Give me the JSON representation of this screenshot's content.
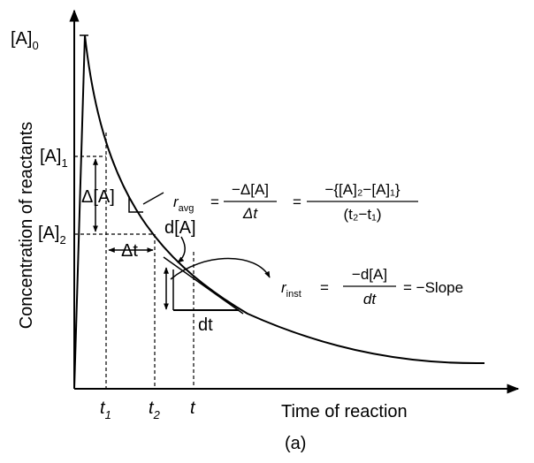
{
  "figure": {
    "caption": "(a)",
    "x_axis_label": "Time of reaction",
    "y_axis_label": "Concentration of reactants"
  },
  "y_marks": {
    "a0": {
      "base": "[A]",
      "sub": "0"
    },
    "a1": {
      "base": "[A]",
      "sub": "1"
    },
    "a2": {
      "base": "[A]",
      "sub": "2"
    }
  },
  "x_marks": {
    "t1": {
      "base": "t",
      "sub": "1"
    },
    "t2": {
      "base": "t",
      "sub": "2"
    },
    "t": {
      "base": "t"
    }
  },
  "annotations": {
    "delta_a": "Δ[A]",
    "delta_t": "Δt",
    "d_a": "d[A]",
    "d_t": "dt"
  },
  "r_avg": {
    "symbol": "r",
    "sub": "avg",
    "num": "−Δ[A]",
    "den": "Δt",
    "rhs_num": "−{[A]₂−[A]₁}",
    "rhs_den": "(t₂−t₁)",
    "equals": "="
  },
  "r_inst": {
    "symbol": "r",
    "sub": "inst",
    "num": "−d[A]",
    "den": "dt",
    "equals": "=",
    "slope": "= −Slope"
  }
}
